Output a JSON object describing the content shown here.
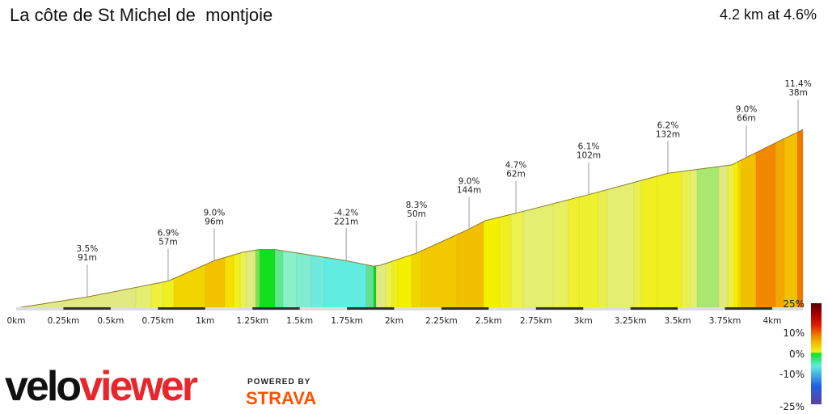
{
  "header": {
    "title": "La côte de St Michel de  montjoie",
    "summary": "4.2 km at 4.6%"
  },
  "chart_data": {
    "type": "area",
    "title": "La côte de St Michel de  montjoie",
    "xlabel": "",
    "ylabel": "",
    "xlim": [
      0,
      4.163
    ],
    "x_ticks": [
      "0km",
      "0.25km",
      "0.5km",
      "0.75km",
      "1km",
      "1.25km",
      "1.5km",
      "1.75km",
      "2km",
      "2.25km",
      "2.5km",
      "2.75km",
      "3km",
      "3.25km",
      "3.5km",
      "3.75km",
      "4km"
    ],
    "profile": [
      [
        0,
        0
      ],
      [
        0.376,
        12
      ],
      [
        0.804,
        29
      ],
      [
        1.048,
        51
      ],
      [
        1.198,
        60
      ],
      [
        1.284,
        63
      ],
      [
        1.369,
        63
      ],
      [
        1.746,
        51
      ],
      [
        1.891,
        45
      ],
      [
        1.925,
        46
      ],
      [
        2.118,
        59
      ],
      [
        2.396,
        85
      ],
      [
        2.482,
        94
      ],
      [
        2.644,
        102
      ],
      [
        3.029,
        122
      ],
      [
        3.448,
        145
      ],
      [
        3.594,
        149
      ],
      [
        3.786,
        154
      ],
      [
        3.863,
        162
      ],
      [
        4.021,
        178
      ],
      [
        4.163,
        192
      ]
    ],
    "segments": [
      [
        0,
        "#e0ea80"
      ],
      [
        0.633,
        "#e4ee70"
      ],
      [
        0.714,
        "#eef040"
      ],
      [
        0.778,
        "#f0f020"
      ],
      [
        0.834,
        "#f2d400"
      ],
      [
        1.001,
        "#f2c200"
      ],
      [
        1.104,
        "#f5e000"
      ],
      [
        1.151,
        "#f0f020"
      ],
      [
        1.185,
        "#eaf050"
      ],
      [
        1.215,
        "#e0ea80"
      ],
      [
        1.266,
        "#80e050"
      ],
      [
        1.288,
        "#10e020"
      ],
      [
        1.369,
        "#60e890"
      ],
      [
        1.412,
        "#8af0c8"
      ],
      [
        1.484,
        "#80ecd0"
      ],
      [
        1.561,
        "#70eadc"
      ],
      [
        1.63,
        "#60ece0"
      ],
      [
        1.852,
        "#60e090"
      ],
      [
        1.891,
        "#10d020"
      ],
      [
        1.904,
        "#e0ea80"
      ],
      [
        1.955,
        "#eaf050"
      ],
      [
        1.989,
        "#f0f020"
      ],
      [
        2.019,
        "#f5f000"
      ],
      [
        2.092,
        "#f2d400"
      ],
      [
        2.143,
        "#f2c800"
      ],
      [
        2.332,
        "#f2c000"
      ],
      [
        2.473,
        "#f5f000"
      ],
      [
        2.558,
        "#f0f020"
      ],
      [
        2.618,
        "#ecf050"
      ],
      [
        2.682,
        "#e4ee70"
      ],
      [
        2.841,
        "#e8f060"
      ],
      [
        2.922,
        "#f0f030"
      ],
      [
        2.978,
        "#eef030"
      ],
      [
        3.08,
        "#eaee50"
      ],
      [
        3.127,
        "#e4ee70"
      ],
      [
        3.268,
        "#eaf050"
      ],
      [
        3.307,
        "#f0f020"
      ],
      [
        3.392,
        "#f0f020"
      ],
      [
        3.521,
        "#eaf050"
      ],
      [
        3.564,
        "#e4ee70"
      ],
      [
        3.602,
        "#a8e870"
      ],
      [
        3.718,
        "#e0ea80"
      ],
      [
        3.765,
        "#eef040"
      ],
      [
        3.799,
        "#f5f000"
      ],
      [
        3.82,
        "#f2d400"
      ],
      [
        3.837,
        "#f2c000"
      ],
      [
        3.914,
        "#f28800"
      ],
      [
        4.017,
        "#f2a800"
      ],
      [
        4.064,
        "#f2c000"
      ],
      [
        4.133,
        "#f07800"
      ]
    ],
    "annotations": [
      {
        "km": 0.376,
        "grade": "3.5%",
        "length": "91m"
      },
      {
        "km": 0.804,
        "grade": "6.9%",
        "length": "57m"
      },
      {
        "km": 1.048,
        "grade": "9.0%",
        "length": "96m"
      },
      {
        "km": 1.746,
        "grade": "-4.2%",
        "length": "221m"
      },
      {
        "km": 2.118,
        "grade": "8.3%",
        "length": "50m"
      },
      {
        "km": 2.396,
        "grade": "9.0%",
        "length": "144m"
      },
      {
        "km": 2.644,
        "grade": "4.7%",
        "length": "62m"
      },
      {
        "km": 3.029,
        "grade": "6.1%",
        "length": "102m"
      },
      {
        "km": 3.448,
        "grade": "6.2%",
        "length": "132m"
      },
      {
        "km": 3.863,
        "grade": "9.0%",
        "length": "66m"
      },
      {
        "km": 4.137,
        "grade": "11.4%",
        "length": "38m"
      }
    ],
    "colorscale": {
      "labels": [
        "25%",
        "10%",
        "0%",
        "-10%",
        "-25%"
      ],
      "stops": [
        "#5a0000",
        "#b00000",
        "#e02000",
        "#f08000",
        "#f2c000",
        "#f0f020",
        "#10e020",
        "#60ece0",
        "#2060e0",
        "#6040a0"
      ]
    }
  },
  "branding": {
    "logo_a": "velo",
    "logo_b": "viewer",
    "powered_by": "POWERED BY",
    "strava": "STRAVA"
  }
}
